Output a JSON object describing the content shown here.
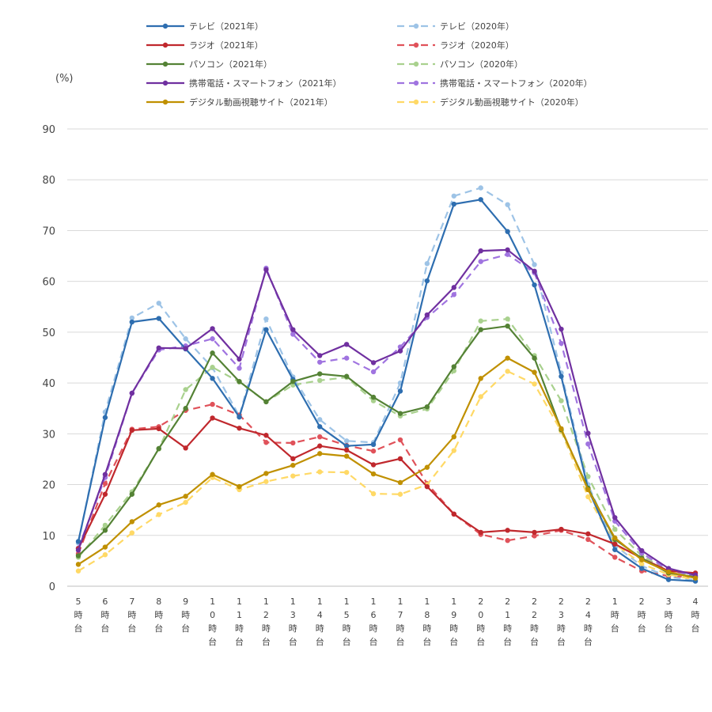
{
  "chart_data": {
    "type": "line",
    "title": "",
    "xlabel": "",
    "ylabel": "",
    "y_unit": "(%)",
    "ylim": [
      0,
      90
    ],
    "y_ticks": [
      0,
      10,
      20,
      30,
      40,
      50,
      60,
      70,
      80,
      90
    ],
    "grid": true,
    "legend_position": "top",
    "categories": [
      "5時台",
      "6時台",
      "7時台",
      "8時台",
      "9時台",
      "10時台",
      "11時台",
      "12時台",
      "13時台",
      "14時台",
      "15時台",
      "16時台",
      "17時台",
      "18時台",
      "19時台",
      "20時台",
      "21時台",
      "22時台",
      "23時台",
      "24時台",
      "1時台",
      "2時台",
      "3時台",
      "4時台"
    ],
    "series": [
      {
        "name": "テレビ（2021年）",
        "color": "#2e6eb0",
        "dashed": false,
        "values": [
          8.8,
          33.2,
          52.0,
          52.7,
          46.7,
          40.9,
          33.3,
          50.5,
          40.7,
          31.4,
          27.6,
          27.9,
          38.4,
          60.1,
          75.2,
          76.1,
          69.8,
          59.3,
          41.3,
          19.2,
          7.2,
          3.5,
          1.3,
          1.0
        ]
      },
      {
        "name": "テレビ（2020年）",
        "color": "#9dc3e6",
        "dashed": true,
        "values": [
          8.5,
          34.3,
          52.8,
          55.7,
          48.7,
          43.0,
          33.5,
          52.6,
          41.2,
          32.8,
          28.6,
          28.3,
          40.0,
          63.5,
          76.8,
          78.4,
          75.1,
          63.3,
          42.0,
          20.0,
          8.0,
          4.0,
          1.8,
          1.2
        ]
      },
      {
        "name": "ラジオ（2021年）",
        "color": "#c0282d",
        "dashed": false,
        "values": [
          7.4,
          18.1,
          30.7,
          31.0,
          27.2,
          33.1,
          31.1,
          29.7,
          25.1,
          27.6,
          26.8,
          23.9,
          25.1,
          19.6,
          14.2,
          10.6,
          11.0,
          10.6,
          11.2,
          10.3,
          8.3,
          5.5,
          3.0,
          2.6
        ]
      },
      {
        "name": "ラジオ（2020年）",
        "color": "#e0525a",
        "dashed": true,
        "values": [
          6.4,
          20.2,
          30.9,
          31.4,
          34.6,
          35.8,
          33.7,
          28.3,
          28.2,
          29.4,
          27.7,
          26.6,
          28.8,
          20.2,
          14.2,
          10.2,
          9.0,
          9.9,
          11.0,
          9.2,
          5.7,
          3.0,
          2.0,
          1.8
        ]
      },
      {
        "name": "パソコン（2021年）",
        "color": "#548235",
        "dashed": false,
        "values": [
          6.0,
          11.0,
          18.1,
          27.1,
          35.0,
          45.9,
          40.3,
          36.3,
          40.3,
          41.8,
          41.3,
          37.2,
          34.0,
          35.3,
          43.2,
          50.5,
          51.2,
          44.9,
          30.8,
          19.3,
          9.2,
          5.5,
          2.6,
          1.8
        ]
      },
      {
        "name": "パソコン（2020年）",
        "color": "#a9d18e",
        "dashed": true,
        "values": [
          5.7,
          12.0,
          18.6,
          27.0,
          38.7,
          43.1,
          40.2,
          36.3,
          39.6,
          40.5,
          41.1,
          36.5,
          33.5,
          34.9,
          42.4,
          52.2,
          52.6,
          45.4,
          36.5,
          21.6,
          11.2,
          6.0,
          3.0,
          2.0
        ]
      },
      {
        "name": "携帯電話・スマートフォン（2021年）",
        "color": "#7030a0",
        "dashed": false,
        "values": [
          7.1,
          22.0,
          38.0,
          46.9,
          46.8,
          50.7,
          44.7,
          62.3,
          50.5,
          45.4,
          47.6,
          44.0,
          46.3,
          53.4,
          58.8,
          66.0,
          66.2,
          62.0,
          50.6,
          30.1,
          13.5,
          7.0,
          3.5,
          2.2
        ]
      },
      {
        "name": "携帯電話・スマートフォン（2020年）",
        "color": "#a074e0",
        "dashed": true,
        "values": [
          7.5,
          21.4,
          38.0,
          46.5,
          47.3,
          48.7,
          42.9,
          62.6,
          49.6,
          44.1,
          44.9,
          42.2,
          47.1,
          52.9,
          57.4,
          63.9,
          65.3,
          61.7,
          47.8,
          28.0,
          12.8,
          6.5,
          3.2,
          2.0
        ]
      },
      {
        "name": "デジタル動画視聴サイト（2021年）",
        "color": "#c09000",
        "dashed": false,
        "values": [
          4.3,
          7.7,
          12.7,
          16.0,
          17.7,
          22.0,
          19.6,
          22.2,
          23.8,
          26.1,
          25.6,
          22.1,
          20.4,
          23.4,
          29.4,
          40.9,
          44.9,
          42.1,
          31.0,
          19.0,
          9.5,
          5.2,
          2.8,
          1.6
        ]
      },
      {
        "name": "デジタル動画視聴サイト（2020年）",
        "color": "#ffd966",
        "dashed": true,
        "values": [
          3.0,
          6.2,
          10.5,
          14.1,
          16.5,
          21.4,
          19.0,
          20.6,
          21.7,
          22.5,
          22.4,
          18.2,
          18.1,
          20.0,
          26.7,
          37.3,
          42.3,
          39.8,
          30.5,
          17.6,
          8.3,
          4.4,
          2.3,
          1.3
        ]
      }
    ]
  }
}
